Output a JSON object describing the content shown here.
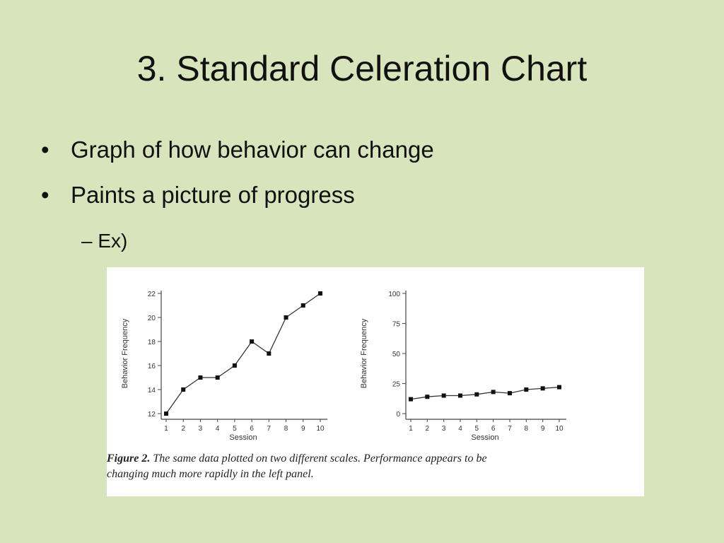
{
  "slide": {
    "title": "3. Standard Celeration Chart",
    "bullets": [
      {
        "marker": "•",
        "text": "Graph of how behavior can change"
      },
      {
        "marker": "•",
        "text": "Paints a picture of progress"
      }
    ],
    "sub_bullet": {
      "marker": "–",
      "text": "Ex)"
    }
  },
  "figure": {
    "label": "Figure 2.",
    "caption_line1": "The same data plotted on two different scales.  Performance appears to be",
    "caption_line2": "changing much more rapidly in the left panel."
  },
  "chart_data": [
    {
      "type": "line",
      "title": "",
      "xlabel": "Session",
      "ylabel": "Behavior Frequency",
      "x": [
        1,
        2,
        3,
        4,
        5,
        6,
        7,
        8,
        9,
        10
      ],
      "values": [
        12,
        14,
        15,
        15,
        16,
        18,
        17,
        20,
        21,
        22
      ],
      "ylim": [
        12,
        22
      ],
      "yticks": [
        12,
        14,
        16,
        18,
        20,
        22
      ],
      "xticks": [
        1,
        2,
        3,
        4,
        5,
        6,
        7,
        8,
        9,
        10
      ]
    },
    {
      "type": "line",
      "title": "",
      "xlabel": "Session",
      "ylabel": "Behavior Frequency",
      "x": [
        1,
        2,
        3,
        4,
        5,
        6,
        7,
        8,
        9,
        10
      ],
      "values": [
        12,
        14,
        15,
        15,
        16,
        18,
        17,
        20,
        21,
        22
      ],
      "ylim": [
        0,
        100
      ],
      "yticks": [
        0,
        25,
        50,
        75,
        100
      ],
      "xticks": [
        1,
        2,
        3,
        4,
        5,
        6,
        7,
        8,
        9,
        10
      ]
    }
  ]
}
